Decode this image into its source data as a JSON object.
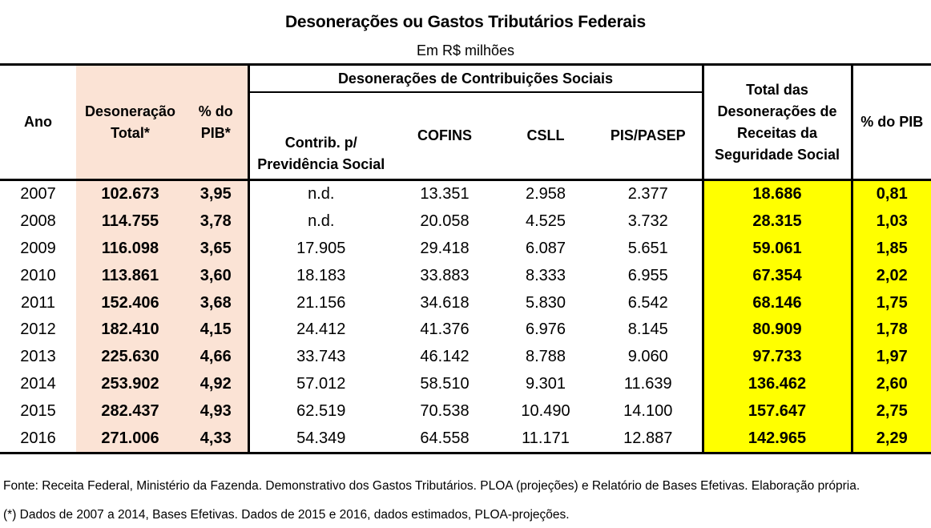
{
  "title": "Desonerações ou Gastos Tributários Federais",
  "subtitle": "Em R$ milhões",
  "headers": {
    "ano": "Ano",
    "desoneracao_total_l1": "Desoneração",
    "desoneracao_total_l2": "Total*",
    "pct_pib_l1": "% do",
    "pct_pib_l2": "PIB*",
    "group": "Desonerações de Contribuições Sociais",
    "contrib_l1": "Contrib. p/",
    "contrib_l2": "Previdência Social",
    "cofins": "COFINS",
    "csll": "CSLL",
    "pis": "PIS/PASEP",
    "total_l1": "Total das",
    "total_l2": "Desonerações de",
    "total_l3": "Receitas da",
    "total_l4": "Seguridade Social",
    "pct_pib2": "% do PIB"
  },
  "rows": [
    {
      "ano": "2007",
      "total": "102.673",
      "pib": "3,95",
      "contrib": "n.d.",
      "cofins": "13.351",
      "csll": "2.958",
      "pis": "2.377",
      "seg": "18.686",
      "pib2": "0,81"
    },
    {
      "ano": "2008",
      "total": "114.755",
      "pib": "3,78",
      "contrib": "n.d.",
      "cofins": "20.058",
      "csll": "4.525",
      "pis": "3.732",
      "seg": "28.315",
      "pib2": "1,03"
    },
    {
      "ano": "2009",
      "total": "116.098",
      "pib": "3,65",
      "contrib": "17.905",
      "cofins": "29.418",
      "csll": "6.087",
      "pis": "5.651",
      "seg": "59.061",
      "pib2": "1,85"
    },
    {
      "ano": "2010",
      "total": "113.861",
      "pib": "3,60",
      "contrib": "18.183",
      "cofins": "33.883",
      "csll": "8.333",
      "pis": "6.955",
      "seg": "67.354",
      "pib2": "2,02"
    },
    {
      "ano": "2011",
      "total": "152.406",
      "pib": "3,68",
      "contrib": "21.156",
      "cofins": "34.618",
      "csll": "5.830",
      "pis": "6.542",
      "seg": "68.146",
      "pib2": "1,75"
    },
    {
      "ano": "2012",
      "total": "182.410",
      "pib": "4,15",
      "contrib": "24.412",
      "cofins": "41.376",
      "csll": "6.976",
      "pis": "8.145",
      "seg": "80.909",
      "pib2": "1,78"
    },
    {
      "ano": "2013",
      "total": "225.630",
      "pib": "4,66",
      "contrib": "33.743",
      "cofins": "46.142",
      "csll": "8.788",
      "pis": "9.060",
      "seg": "97.733",
      "pib2": "1,97"
    },
    {
      "ano": "2014",
      "total": "253.902",
      "pib": "4,92",
      "contrib": "57.012",
      "cofins": "58.510",
      "csll": "9.301",
      "pis": "11.639",
      "seg": "136.462",
      "pib2": "2,60"
    },
    {
      "ano": "2015",
      "total": "282.437",
      "pib": "4,93",
      "contrib": "62.519",
      "cofins": "70.538",
      "csll": "10.490",
      "pis": "14.100",
      "seg": "157.647",
      "pib2": "2,75"
    },
    {
      "ano": "2016",
      "total": "271.006",
      "pib": "4,33",
      "contrib": "54.349",
      "cofins": "64.558",
      "csll": "11.171",
      "pis": "12.887",
      "seg": "142.965",
      "pib2": "2,29"
    }
  ],
  "footnotes": {
    "fonte": "Fonte: Receita Federal, Ministério da Fazenda. Demonstrativo dos Gastos Tributários. PLOA (projeções) e Relatório de Bases Efetivas. Elaboração própria.",
    "nota": "(*) Dados de 2007 a 2014, Bases Efetivas. Dados de 2015 e 2016, dados estimados, PLOA-projeções."
  },
  "colors": {
    "peach": "#fbe3d5",
    "yellow": "#ffff00"
  }
}
